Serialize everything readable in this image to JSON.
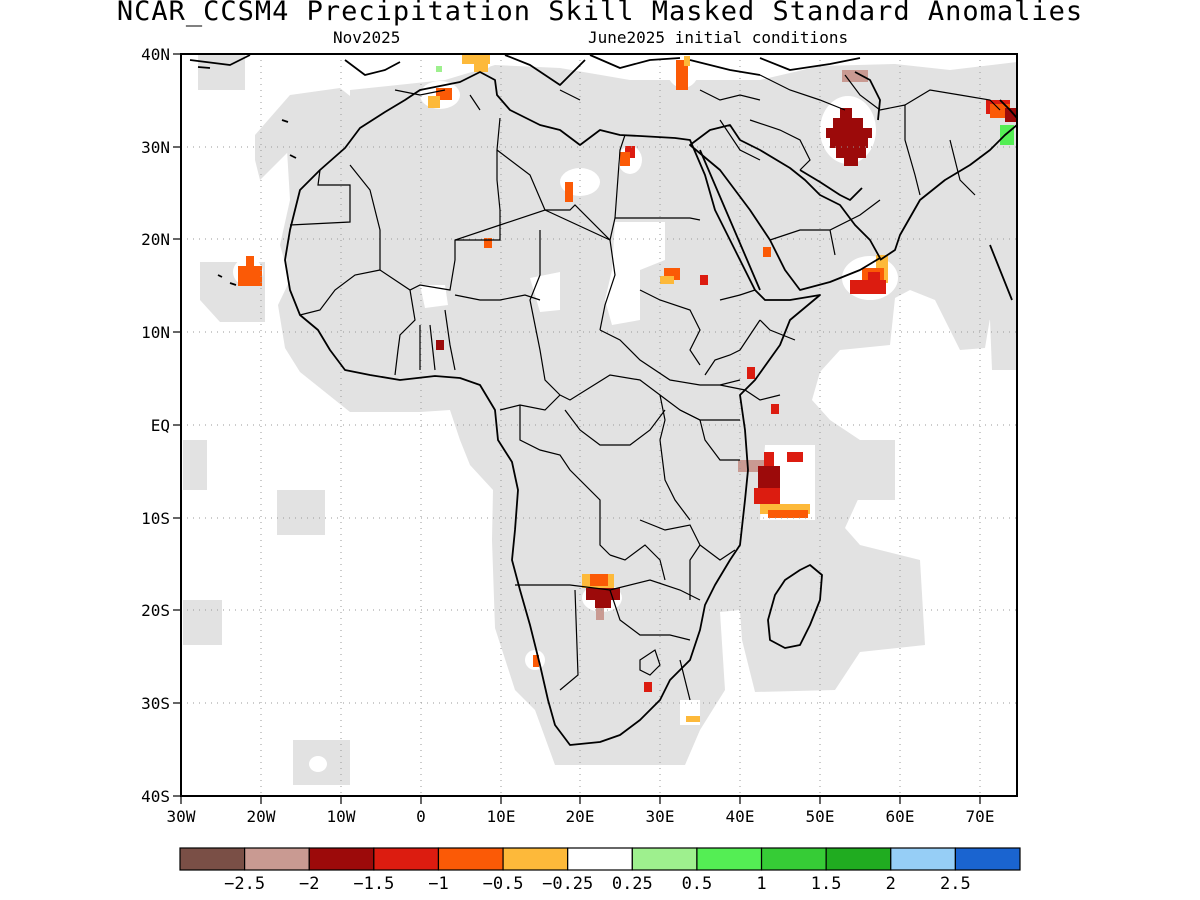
{
  "title": "NCAR_CCSM4 Precipitation Skill Masked Standard Anomalies",
  "subtitle_left": "Nov2025",
  "subtitle_right": "June2025 initial conditions",
  "lon_ticks": [
    "30W",
    "20W",
    "10W",
    "0",
    "10E",
    "20E",
    "30E",
    "40E",
    "50E",
    "60E",
    "70E"
  ],
  "lat_ticks": [
    "40N",
    "30N",
    "20N",
    "10N",
    "EQ",
    "10S",
    "20S",
    "30S",
    "40S"
  ],
  "colorbar": {
    "colors": [
      "#7a4f46",
      "#c99a92",
      "#9c0a0a",
      "#dc1c10",
      "#fb5a06",
      "#fdb93a",
      "#ffffff",
      "#9ef08e",
      "#54ee54",
      "#36cc36",
      "#20ac20",
      "#96cef6",
      "#1a64d0"
    ],
    "labels": [
      "-2.5",
      "-2",
      "-1.5",
      "-1",
      "-0.5",
      "-0.25",
      "0.25",
      "0.5",
      "1",
      "1.5",
      "2",
      "2.5"
    ]
  },
  "colors": {
    "mask": "#e2e2e2",
    "coast": "#000000",
    "grid": "#9a9a9a"
  }
}
